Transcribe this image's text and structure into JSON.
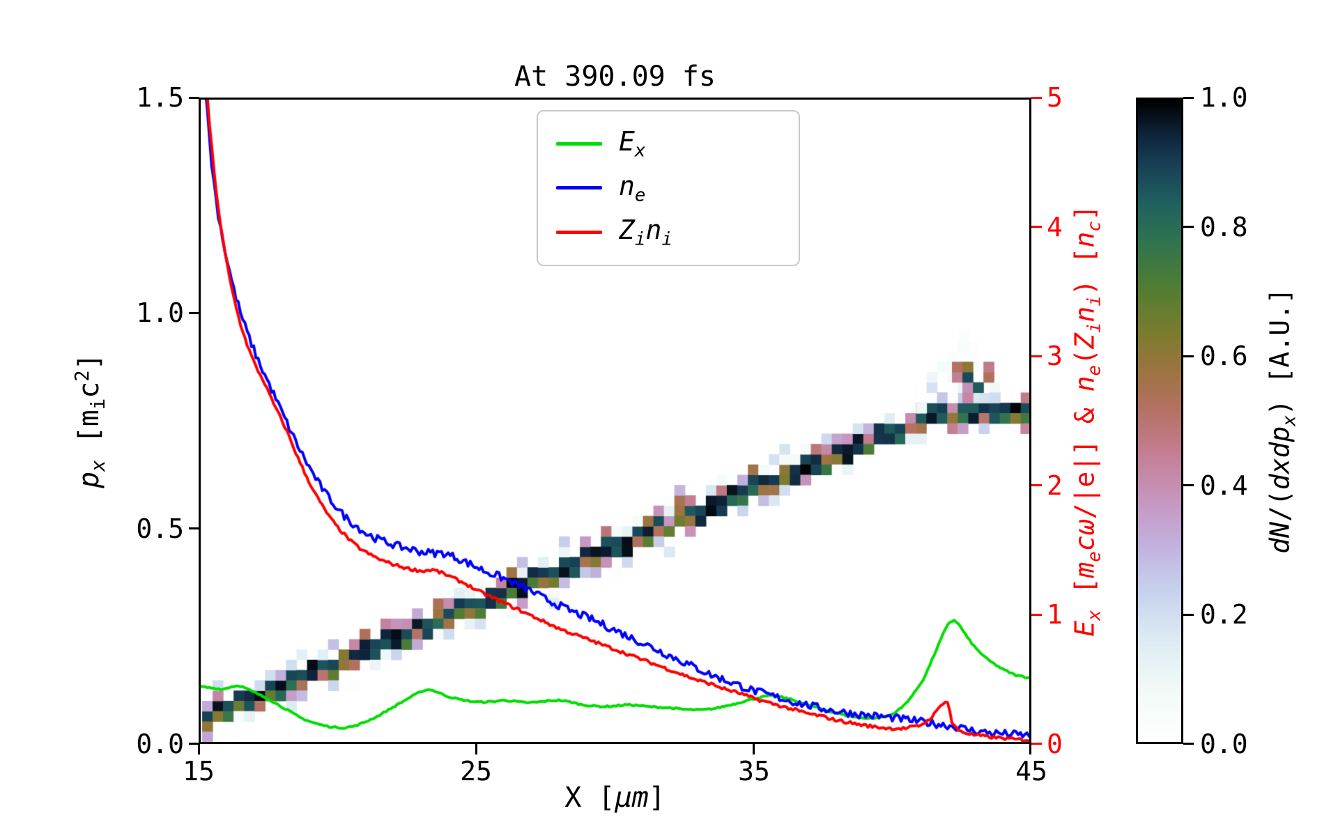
{
  "figure": {
    "title": "At 390.09 fs",
    "xlabel": "X [*μm*]",
    "ylabel_left": "*p_{x}* [m_{i}c^{2}]",
    "ylabel_right": "*E_{x}* [*m_{e}cω*/|e|] & *n_{e}*(*Z_{i}n_{i}*) [*n_{c}*]",
    "colorbar_label": "*dN*/(*dxdp_{x}*) [A.U.]",
    "axis_color_right": "#ff0000",
    "axis_color_left": "#000000"
  },
  "legend": {
    "items": [
      {
        "label": "*E_{x}*",
        "color": "#00dd00"
      },
      {
        "label": "*n_{e}*",
        "color": "#0000ff"
      },
      {
        "label": "*Z_{i}n_{i}*",
        "color": "#ff0000"
      }
    ]
  },
  "chart_data": {
    "type": "line+heatmap",
    "title": "At 390.09 fs",
    "xlabel": "X [μm]",
    "x_range": [
      15,
      45
    ],
    "x_ticks": [
      "15",
      "25",
      "35",
      "45"
    ],
    "x_tick_values": [
      15,
      25,
      35,
      45
    ],
    "left_axis": {
      "label": "p_x [m_i c^2]",
      "min": 0,
      "max": 1.5,
      "ticks": [
        "0.0",
        "0.5",
        "1.0",
        "1.5"
      ],
      "tick_values": [
        0.0,
        0.5,
        1.0,
        1.5
      ]
    },
    "right_axis": {
      "label": "E_x [m_e cω/|e|] & n_e(Z_i n_i) [n_c]",
      "min": 0,
      "max": 5,
      "ticks": [
        "0",
        "1",
        "2",
        "3",
        "4",
        "5"
      ],
      "tick_values": [
        0,
        1,
        2,
        3,
        4,
        5
      ]
    },
    "colorbar": {
      "label": "dN/(dxdp_x) [A.U.]",
      "min": 0,
      "max": 1,
      "ticks": [
        "0.0",
        "0.2",
        "0.4",
        "0.6",
        "0.8",
        "1.0"
      ],
      "tick_values": [
        0,
        0.2,
        0.4,
        0.6,
        0.8,
        1.0
      ]
    },
    "series": [
      {
        "name": "E_x",
        "axis": "right",
        "color": "#00dd00",
        "line_width": 4,
        "noise": 0.006,
        "points": [
          [
            15,
            0.43
          ],
          [
            15.4,
            0.42
          ],
          [
            15.8,
            0.41
          ],
          [
            16.1,
            0.43
          ],
          [
            16.4,
            0.44
          ],
          [
            16.7,
            0.41
          ],
          [
            17,
            0.38
          ],
          [
            17.4,
            0.34
          ],
          [
            17.8,
            0.29
          ],
          [
            18.2,
            0.24
          ],
          [
            18.6,
            0.19
          ],
          [
            19,
            0.155
          ],
          [
            19.4,
            0.13
          ],
          [
            19.8,
            0.115
          ],
          [
            20.2,
            0.11
          ],
          [
            20.6,
            0.125
          ],
          [
            21,
            0.16
          ],
          [
            21.4,
            0.2
          ],
          [
            21.8,
            0.25
          ],
          [
            22.2,
            0.3
          ],
          [
            22.6,
            0.35
          ],
          [
            23,
            0.395
          ],
          [
            23.3,
            0.41
          ],
          [
            23.6,
            0.385
          ],
          [
            24,
            0.35
          ],
          [
            24.4,
            0.33
          ],
          [
            24.8,
            0.315
          ],
          [
            25.2,
            0.31
          ],
          [
            25.6,
            0.315
          ],
          [
            26,
            0.325
          ],
          [
            26.4,
            0.315
          ],
          [
            26.8,
            0.305
          ],
          [
            27.2,
            0.31
          ],
          [
            27.6,
            0.32
          ],
          [
            28,
            0.325
          ],
          [
            28.4,
            0.31
          ],
          [
            28.8,
            0.29
          ],
          [
            29.2,
            0.28
          ],
          [
            29.6,
            0.275
          ],
          [
            30,
            0.28
          ],
          [
            30.4,
            0.29
          ],
          [
            30.8,
            0.285
          ],
          [
            31.2,
            0.275
          ],
          [
            31.6,
            0.27
          ],
          [
            32,
            0.265
          ],
          [
            32.4,
            0.255
          ],
          [
            32.8,
            0.25
          ],
          [
            33.2,
            0.25
          ],
          [
            33.6,
            0.26
          ],
          [
            34,
            0.28
          ],
          [
            34.4,
            0.3
          ],
          [
            34.8,
            0.325
          ],
          [
            35.2,
            0.345
          ],
          [
            35.6,
            0.36
          ],
          [
            36,
            0.35
          ],
          [
            36.4,
            0.33
          ],
          [
            36.8,
            0.3
          ],
          [
            37.2,
            0.275
          ],
          [
            37.6,
            0.25
          ],
          [
            38,
            0.225
          ],
          [
            38.4,
            0.205
          ],
          [
            38.8,
            0.19
          ],
          [
            39.2,
            0.185
          ],
          [
            39.6,
            0.19
          ],
          [
            40,
            0.21
          ],
          [
            40.4,
            0.27
          ],
          [
            40.8,
            0.37
          ],
          [
            41.2,
            0.5
          ],
          [
            41.6,
            0.7
          ],
          [
            41.9,
            0.85
          ],
          [
            42.1,
            0.93
          ],
          [
            42.3,
            0.95
          ],
          [
            42.5,
            0.9
          ],
          [
            42.8,
            0.8
          ],
          [
            43.1,
            0.72
          ],
          [
            43.5,
            0.64
          ],
          [
            44,
            0.57
          ],
          [
            44.5,
            0.52
          ],
          [
            45,
            0.5
          ]
        ]
      },
      {
        "name": "n_e",
        "axis": "right",
        "color": "#0000ff",
        "line_width": 4,
        "noise": 0.03,
        "points": [
          [
            15,
            5.6
          ],
          [
            15.2,
            5.0
          ],
          [
            15.4,
            4.5
          ],
          [
            15.6,
            4.15
          ],
          [
            15.9,
            3.8
          ],
          [
            16.2,
            3.52
          ],
          [
            16.5,
            3.3
          ],
          [
            16.8,
            3.12
          ],
          [
            17.1,
            2.96
          ],
          [
            17.4,
            2.82
          ],
          [
            17.7,
            2.68
          ],
          [
            18,
            2.54
          ],
          [
            18.3,
            2.4
          ],
          [
            18.6,
            2.27
          ],
          [
            18.9,
            2.15
          ],
          [
            19.2,
            2.04
          ],
          [
            19.5,
            1.94
          ],
          [
            19.8,
            1.86
          ],
          [
            20.1,
            1.78
          ],
          [
            20.4,
            1.72
          ],
          [
            20.7,
            1.67
          ],
          [
            21,
            1.62
          ],
          [
            21.4,
            1.58
          ],
          [
            21.8,
            1.55
          ],
          [
            22.2,
            1.52
          ],
          [
            22.6,
            1.5
          ],
          [
            23,
            1.48
          ],
          [
            23.4,
            1.47
          ],
          [
            23.8,
            1.47
          ],
          [
            24.2,
            1.44
          ],
          [
            24.6,
            1.4
          ],
          [
            25,
            1.36
          ],
          [
            25.4,
            1.32
          ],
          [
            25.8,
            1.29
          ],
          [
            26.2,
            1.25
          ],
          [
            26.6,
            1.21
          ],
          [
            27,
            1.17
          ],
          [
            27.5,
            1.11
          ],
          [
            28,
            1.06
          ],
          [
            28.5,
            1.01
          ],
          [
            29,
            0.97
          ],
          [
            29.5,
            0.92
          ],
          [
            30,
            0.87
          ],
          [
            30.5,
            0.82
          ],
          [
            31,
            0.77
          ],
          [
            31.5,
            0.72
          ],
          [
            32,
            0.67
          ],
          [
            32.5,
            0.62
          ],
          [
            33,
            0.57
          ],
          [
            33.5,
            0.52
          ],
          [
            34,
            0.48
          ],
          [
            34.5,
            0.44
          ],
          [
            35,
            0.4
          ],
          [
            35.5,
            0.37
          ],
          [
            36,
            0.34
          ],
          [
            36.5,
            0.31
          ],
          [
            37,
            0.285
          ],
          [
            37.5,
            0.26
          ],
          [
            38,
            0.24
          ],
          [
            38.5,
            0.225
          ],
          [
            39,
            0.21
          ],
          [
            39.5,
            0.2
          ],
          [
            40,
            0.19
          ],
          [
            40.5,
            0.175
          ],
          [
            41,
            0.16
          ],
          [
            41.5,
            0.145
          ],
          [
            42,
            0.13
          ],
          [
            42.4,
            0.115
          ],
          [
            42.8,
            0.095
          ],
          [
            43.2,
            0.08
          ],
          [
            43.6,
            0.072
          ],
          [
            44,
            0.066
          ],
          [
            44.5,
            0.058
          ],
          [
            45,
            0.05
          ]
        ]
      },
      {
        "name": "Z_i n_i",
        "axis": "right",
        "color": "#ff0000",
        "line_width": 4,
        "noise": 0.012,
        "points": [
          [
            15,
            5.8
          ],
          [
            15.15,
            5.3
          ],
          [
            15.3,
            4.85
          ],
          [
            15.5,
            4.4
          ],
          [
            15.7,
            4.05
          ],
          [
            15.9,
            3.78
          ],
          [
            16.1,
            3.55
          ],
          [
            16.4,
            3.28
          ],
          [
            16.7,
            3.08
          ],
          [
            17,
            2.92
          ],
          [
            17.3,
            2.8
          ],
          [
            17.6,
            2.65
          ],
          [
            17.9,
            2.52
          ],
          [
            18.2,
            2.38
          ],
          [
            18.5,
            2.22
          ],
          [
            18.8,
            2.08
          ],
          [
            19.1,
            1.95
          ],
          [
            19.4,
            1.84
          ],
          [
            19.7,
            1.74
          ],
          [
            20,
            1.66
          ],
          [
            20.4,
            1.57
          ],
          [
            20.8,
            1.5
          ],
          [
            21.2,
            1.45
          ],
          [
            21.6,
            1.41
          ],
          [
            22,
            1.38
          ],
          [
            22.5,
            1.35
          ],
          [
            23,
            1.33
          ],
          [
            23.4,
            1.34
          ],
          [
            23.8,
            1.31
          ],
          [
            24.2,
            1.27
          ],
          [
            24.6,
            1.23
          ],
          [
            25,
            1.18
          ],
          [
            25.5,
            1.13
          ],
          [
            26,
            1.08
          ],
          [
            26.5,
            1.03
          ],
          [
            27,
            0.98
          ],
          [
            27.5,
            0.93
          ],
          [
            28,
            0.88
          ],
          [
            28.5,
            0.84
          ],
          [
            29,
            0.8
          ],
          [
            29.5,
            0.76
          ],
          [
            30,
            0.72
          ],
          [
            30.5,
            0.68
          ],
          [
            31,
            0.64
          ],
          [
            31.5,
            0.6
          ],
          [
            32,
            0.56
          ],
          [
            32.5,
            0.52
          ],
          [
            33,
            0.48
          ],
          [
            33.5,
            0.45
          ],
          [
            34,
            0.41
          ],
          [
            34.5,
            0.38
          ],
          [
            35,
            0.34
          ],
          [
            35.5,
            0.31
          ],
          [
            36,
            0.28
          ],
          [
            36.5,
            0.25
          ],
          [
            37,
            0.22
          ],
          [
            37.5,
            0.2
          ],
          [
            38,
            0.17
          ],
          [
            38.5,
            0.15
          ],
          [
            39,
            0.13
          ],
          [
            39.5,
            0.115
          ],
          [
            40,
            0.105
          ],
          [
            40.5,
            0.105
          ],
          [
            41,
            0.125
          ],
          [
            41.3,
            0.16
          ],
          [
            41.6,
            0.225
          ],
          [
            41.85,
            0.3
          ],
          [
            42,
            0.325
          ],
          [
            42.1,
            0.27
          ],
          [
            42.2,
            0.15
          ],
          [
            42.4,
            0.095
          ],
          [
            42.7,
            0.07
          ],
          [
            43,
            0.055
          ],
          [
            43.5,
            0.04
          ],
          [
            44,
            0.03
          ],
          [
            44.5,
            0.02
          ],
          [
            45,
            0.015
          ]
        ]
      }
    ],
    "heatmap": {
      "description": "ion phase-space dN/(dxdp_x): dark diagonal band rising from (15,0.05) to (42,0.78), flat tail to x=45, pale fan burst around x=42 up to p=0.97",
      "seed": 7,
      "x_start": 15.05,
      "x_end": 45,
      "cell_dx": 0.38,
      "cell_dp": 0.024,
      "band": [
        [
          15.05,
          0.05
        ],
        [
          42.0,
          0.778
        ],
        [
          42.6,
          0.772
        ],
        [
          45,
          0.776
        ]
      ],
      "fan": {
        "x0": 40.9,
        "x1": 43.9,
        "x_peak": 42.5,
        "p_top": 0.985,
        "edge_slope": 0.11
      },
      "colormap": [
        [
          0.0,
          "#ffffff"
        ],
        [
          0.08,
          "#f2faf7"
        ],
        [
          0.16,
          "#dcebf3"
        ],
        [
          0.24,
          "#c6d0ed"
        ],
        [
          0.31,
          "#c2afdd"
        ],
        [
          0.38,
          "#c695bd"
        ],
        [
          0.45,
          "#c47e94"
        ],
        [
          0.52,
          "#b47162"
        ],
        [
          0.58,
          "#9c7440"
        ],
        [
          0.64,
          "#7a7c2e"
        ],
        [
          0.71,
          "#4f7d33"
        ],
        [
          0.78,
          "#2f7350"
        ],
        [
          0.84,
          "#20605f"
        ],
        [
          0.9,
          "#173f55"
        ],
        [
          0.95,
          "#0e2138"
        ],
        [
          1.0,
          "#000000"
        ]
      ]
    }
  }
}
